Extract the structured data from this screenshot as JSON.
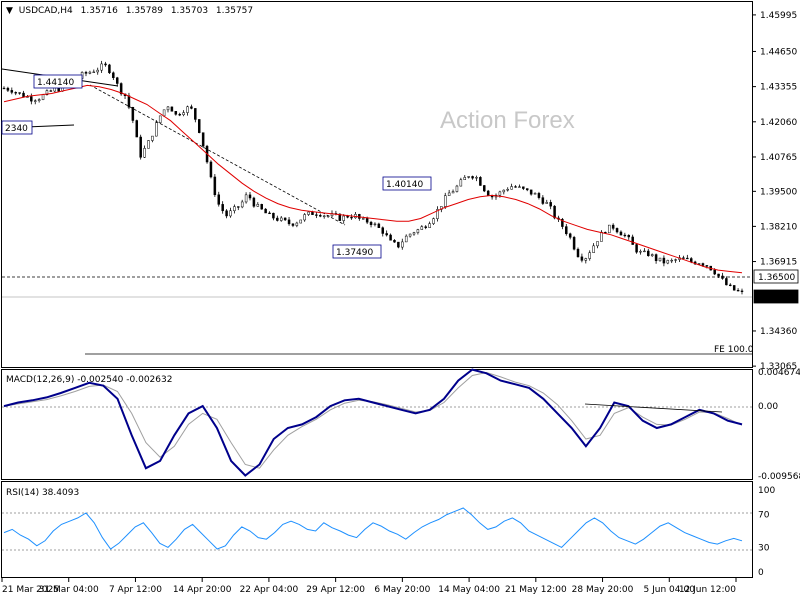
{
  "header": {
    "symbol": "USDCAD,H4",
    "open": "1.35716",
    "high": "1.35789",
    "low": "1.35703",
    "close": "1.35757"
  },
  "watermark": "Action Forex",
  "colors": {
    "price": "#000000",
    "ma": "#e00000",
    "macd": "#00008b",
    "signal": "#a0a0a0",
    "rsi": "#1e90ff",
    "background": "#ffffff",
    "grid": "#000000"
  },
  "chart_data": [
    {
      "type": "candlestick",
      "title": "USDCAD,H4",
      "x_labels": [
        "21 Mar 2025",
        "31 Mar 04:00",
        "7 Apr 12:00",
        "14 Apr 20:00",
        "22 Apr 04:00",
        "29 Apr 12:00",
        "6 May 20:00",
        "14 May 04:00",
        "21 May 12:00",
        "28 May 20:00",
        "5 Jun 04:00",
        "12 Jun 12:00"
      ],
      "y_ticks": [
        "1.45995",
        "1.44650",
        "1.43355",
        "1.42060",
        "1.40765",
        "1.39500",
        "1.38210",
        "1.36915",
        "1.35757",
        "1.34360",
        "1.33065"
      ],
      "ylim": [
        1.3307,
        1.4647
      ],
      "close_series": [
        1.433,
        1.4325,
        1.431,
        1.43,
        1.429,
        1.4295,
        1.431,
        1.4325,
        1.433,
        1.434,
        1.436,
        1.438,
        1.439,
        1.44,
        1.4414,
        1.439,
        1.433,
        1.43,
        1.421,
        1.408,
        1.412,
        1.418,
        1.424,
        1.427,
        1.423,
        1.425,
        1.426,
        1.42,
        1.41,
        1.398,
        1.39,
        1.386,
        1.388,
        1.39,
        1.394,
        1.39,
        1.388,
        1.386,
        1.385,
        1.384,
        1.383,
        1.384,
        1.386,
        1.387,
        1.387,
        1.386,
        1.386,
        1.385,
        1.386,
        1.386,
        1.384,
        1.384,
        1.382,
        1.38,
        1.376,
        1.3749,
        1.378,
        1.38,
        1.381,
        1.383,
        1.386,
        1.39,
        1.394,
        1.396,
        1.399,
        1.4014,
        1.4,
        1.396,
        1.393,
        1.394,
        1.396,
        1.397,
        1.396,
        1.395,
        1.394,
        1.392,
        1.39,
        1.385,
        1.382,
        1.378,
        1.372,
        1.37,
        1.374,
        1.378,
        1.381,
        1.382,
        1.38,
        1.378,
        1.374,
        1.372,
        1.372,
        1.37,
        1.369,
        1.369,
        1.37,
        1.37,
        1.369,
        1.369,
        1.368,
        1.366,
        1.363,
        1.36,
        1.3585,
        1.3575
      ],
      "ma_series": [
        1.428,
        1.429,
        1.43,
        1.4305,
        1.431,
        1.432,
        1.433,
        1.434,
        1.4335,
        1.4325,
        1.431,
        1.429,
        1.427,
        1.424,
        1.421,
        1.417,
        1.413,
        1.409,
        1.405,
        1.4015,
        1.398,
        1.395,
        1.3925,
        1.3905,
        1.389,
        1.388,
        1.3875,
        1.387,
        1.3865,
        1.386,
        1.3855,
        1.385,
        1.3845,
        1.384,
        1.384,
        1.385,
        1.387,
        1.389,
        1.3905,
        1.392,
        1.393,
        1.3935,
        1.393,
        1.392,
        1.3905,
        1.3885,
        1.386,
        1.384,
        1.3825,
        1.381,
        1.38,
        1.379,
        1.3775,
        1.376,
        1.3745,
        1.373,
        1.3715,
        1.37,
        1.3685,
        1.367,
        1.366,
        1.3655,
        1.365
      ],
      "annotations": [
        {
          "label": "1.44140",
          "kind": "swing-high"
        },
        {
          "label": "1.37490",
          "kind": "swing-low"
        },
        {
          "label": "1.40140",
          "kind": "swing-high"
        },
        {
          "label": "2340",
          "kind": "level"
        },
        {
          "label": "1.36500",
          "kind": "horizontal-level"
        },
        {
          "label": "1.35757",
          "kind": "current-price"
        },
        {
          "label": "FE 100.0",
          "kind": "fibonacci-expansion"
        }
      ]
    },
    {
      "type": "line",
      "title": "MACD(12,26,9) -0.002540 -0.002632",
      "y_ticks": [
        "0.004674",
        "0.00",
        "-0.009568"
      ],
      "ylim": [
        -0.009568,
        0.004674
      ],
      "series": [
        {
          "name": "MACD",
          "values": [
            0.0,
            0.0005,
            0.0008,
            0.0012,
            0.0018,
            0.0025,
            0.0032,
            0.0028,
            0.001,
            -0.004,
            -0.0085,
            -0.0075,
            -0.004,
            -0.001,
            0.0,
            -0.003,
            -0.0075,
            -0.0095,
            -0.008,
            -0.0045,
            -0.003,
            -0.0025,
            -0.0015,
            0.0,
            0.0008,
            0.001,
            0.0005,
            0.0,
            -0.0005,
            -0.001,
            -0.0005,
            0.001,
            0.0035,
            0.005,
            0.0045,
            0.0035,
            0.003,
            0.0025,
            0.001,
            -0.001,
            -0.003,
            -0.0055,
            -0.003,
            0.0005,
            0.0,
            -0.002,
            -0.003,
            -0.0025,
            -0.0015,
            -0.0005,
            -0.001,
            -0.002,
            -0.0025
          ]
        },
        {
          "name": "Signal",
          "values": [
            0.0,
            0.0003,
            0.0006,
            0.0009,
            0.0014,
            0.002,
            0.0027,
            0.0029,
            0.002,
            -0.001,
            -0.005,
            -0.007,
            -0.0055,
            -0.0025,
            -0.001,
            -0.0018,
            -0.005,
            -0.008,
            -0.0085,
            -0.006,
            -0.004,
            -0.0028,
            -0.0018,
            -0.0005,
            0.0004,
            0.0008,
            0.0006,
            0.0002,
            -0.0003,
            -0.0008,
            -0.0006,
            0.0005,
            0.0025,
            0.0042,
            0.0046,
            0.004,
            0.0033,
            0.0028,
            0.0018,
            0.0002,
            -0.002,
            -0.0045,
            -0.004,
            -0.001,
            -0.0002,
            -0.0015,
            -0.0025,
            -0.0026,
            -0.0018,
            -0.0008,
            -0.0009,
            -0.0017,
            -0.0026
          ]
        }
      ]
    },
    {
      "type": "line",
      "title": "RSI(14) 38.4093",
      "y_ticks": [
        "100",
        "70",
        "30",
        "0"
      ],
      "ylim": [
        0,
        100
      ],
      "series": [
        {
          "name": "RSI",
          "values": [
            48,
            52,
            45,
            40,
            32,
            38,
            50,
            58,
            62,
            66,
            72,
            60,
            42,
            28,
            35,
            45,
            55,
            60,
            48,
            35,
            30,
            40,
            52,
            58,
            48,
            38,
            28,
            32,
            45,
            55,
            50,
            42,
            40,
            48,
            58,
            62,
            58,
            52,
            50,
            60,
            54,
            50,
            45,
            42,
            52,
            60,
            56,
            50,
            46,
            40,
            48,
            55,
            60,
            64,
            70,
            74,
            78,
            70,
            60,
            52,
            55,
            62,
            66,
            60,
            50,
            45,
            40,
            35,
            30,
            40,
            50,
            60,
            66,
            60,
            50,
            42,
            38,
            34,
            40,
            48,
            56,
            60,
            54,
            48,
            44,
            40,
            36,
            34,
            38,
            41,
            38
          ]
        }
      ]
    }
  ]
}
